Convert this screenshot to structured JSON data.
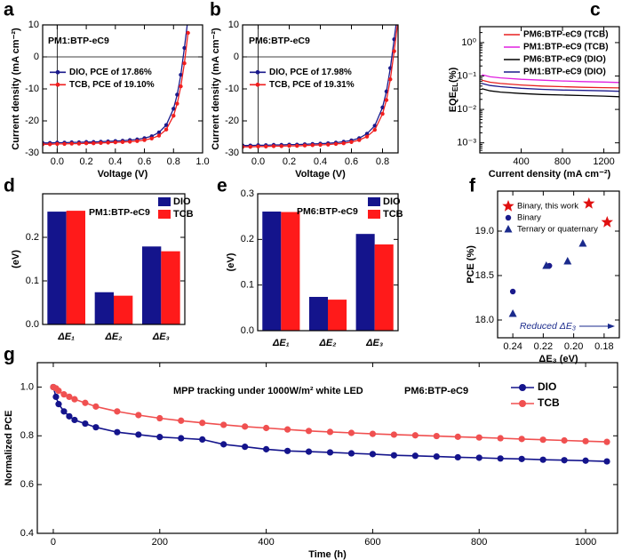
{
  "chart_data": [
    {
      "type": "line",
      "panel_label": "a",
      "annotation": "PM1:BTP-eC9",
      "xlabel": "Voltage (V)",
      "ylabel": "Current density (mA cm⁻²)",
      "xlim": [
        -0.1,
        1.0
      ],
      "ylim": [
        -30,
        10
      ],
      "xticks": [
        {
          "value": 0,
          "label": "0.0"
        },
        0.2,
        0.4,
        0.6,
        0.8,
        {
          "value": 1,
          "label": "1.0"
        }
      ],
      "yticks": [
        -30,
        -20,
        -10,
        0,
        10
      ],
      "markers": true,
      "legend": "center left",
      "x": [
        -0.1,
        -0.05,
        0,
        0.05,
        0.1,
        0.15,
        0.2,
        0.25,
        0.3,
        0.35,
        0.4,
        0.45,
        0.5,
        0.55,
        0.6,
        0.65,
        0.7,
        0.75,
        0.8,
        0.825,
        0.85,
        0.875,
        0.9
      ],
      "series": [
        {
          "name": "DIO, PCE of 17.86%",
          "color": "#1a1a8c",
          "values": [
            -26.9,
            -26.9,
            -26.8,
            -26.8,
            -26.7,
            -26.7,
            -26.6,
            -26.6,
            -26.5,
            -26.4,
            -26.3,
            -26.2,
            -26.0,
            -25.8,
            -25.4,
            -24.8,
            -23.6,
            -21.3,
            -16.2,
            -11.8,
            -5.6,
            2.8,
            12.0
          ]
        },
        {
          "name": "TCB, PCE of 19.10%",
          "color": "#f01e1e",
          "values": [
            -27.3,
            -27.3,
            -27.2,
            -27.2,
            -27.1,
            -27.1,
            -27.0,
            -27.0,
            -26.9,
            -26.8,
            -26.7,
            -26.6,
            -26.5,
            -26.3,
            -26.0,
            -25.5,
            -24.6,
            -22.7,
            -18.4,
            -14.6,
            -9.2,
            -2.0,
            7.5
          ]
        }
      ]
    },
    {
      "type": "line",
      "panel_label": "b",
      "annotation": "PM6:BTP-eC9",
      "xlabel": "Voltage (V)",
      "ylabel": "Current density (mA cm⁻²)",
      "xlim": [
        -0.1,
        0.9
      ],
      "ylim": [
        -30,
        10
      ],
      "xticks": [
        {
          "value": 0,
          "label": "0.0"
        },
        0.2,
        0.4,
        0.6,
        0.8
      ],
      "yticks": [
        -30,
        -20,
        -10,
        0,
        10
      ],
      "markers": true,
      "legend": "center left",
      "x": [
        -0.1,
        -0.05,
        0,
        0.05,
        0.1,
        0.15,
        0.2,
        0.25,
        0.3,
        0.35,
        0.4,
        0.45,
        0.5,
        0.55,
        0.6,
        0.65,
        0.7,
        0.75,
        0.8,
        0.825,
        0.85,
        0.875,
        0.9
      ],
      "series": [
        {
          "name": "DIO, PCE of 17.98%",
          "color": "#1a1a8c",
          "values": [
            -27.7,
            -27.7,
            -27.6,
            -27.6,
            -27.5,
            -27.5,
            -27.4,
            -27.4,
            -27.3,
            -27.2,
            -27.1,
            -27.0,
            -26.8,
            -26.5,
            -26.1,
            -25.4,
            -24.0,
            -21.5,
            -15.8,
            -10.8,
            -3.5,
            5.5,
            15.0
          ]
        },
        {
          "name": "TCB, PCE of 19.31%",
          "color": "#f01e1e",
          "values": [
            -28.1,
            -28.1,
            -28.0,
            -28.0,
            -27.9,
            -27.9,
            -27.8,
            -27.8,
            -27.7,
            -27.6,
            -27.5,
            -27.4,
            -27.2,
            -27.0,
            -26.6,
            -26.0,
            -24.9,
            -22.8,
            -17.8,
            -13.5,
            -7.0,
            1.8,
            11.5
          ]
        }
      ]
    },
    {
      "type": "line",
      "panel_label": "c",
      "xlabel": "Current density (mA cm⁻²)",
      "ylabel": {
        "main": "EQE",
        "sub": "EL",
        "unit": "(%)"
      },
      "xlim": [
        0,
        1350
      ],
      "ylim": [
        0.0005,
        3
      ],
      "ylog": true,
      "xticks": [
        400,
        800,
        1200
      ],
      "yticks": [
        {
          "value": 0.001,
          "label": "10⁻³"
        },
        {
          "value": 0.01,
          "label": "10⁻²"
        },
        {
          "value": 0.1,
          "label": "10⁻¹"
        },
        {
          "value": 1,
          "label": "10⁰"
        }
      ],
      "markers": false,
      "legend": "upper right",
      "x": [
        20,
        100,
        200,
        400,
        600,
        800,
        1000,
        1200,
        1350
      ],
      "series": [
        {
          "name": "PM6:BTP-eC9 (TCB)",
          "color": "#e82020",
          "values": [
            0.075,
            0.065,
            0.06,
            0.054,
            0.05,
            0.048,
            0.046,
            0.045,
            0.044
          ]
        },
        {
          "name": "PM1:BTP-eC9 (TCB)",
          "color": "#e020e0",
          "values": [
            0.11,
            0.095,
            0.088,
            0.08,
            0.075,
            0.071,
            0.068,
            0.066,
            0.064
          ]
        },
        {
          "name": "PM6:BTP-eC9 (DIO)",
          "color": "#000000",
          "values": [
            0.042,
            0.036,
            0.033,
            0.03,
            0.028,
            0.027,
            0.026,
            0.025,
            0.024
          ]
        },
        {
          "name": "PM1:BTP-eC9 (DIO)",
          "color": "#1a1a8c",
          "values": [
            0.06,
            0.052,
            0.048,
            0.043,
            0.04,
            0.038,
            0.037,
            0.036,
            0.035
          ]
        }
      ]
    },
    {
      "type": "bar",
      "panel_label": "d",
      "annotation": "PM1:BTP-eC9",
      "ylabel": "(eV)",
      "ylim": [
        0,
        0.3
      ],
      "yticks": [
        {
          "value": 0,
          "label": "0.0"
        },
        0.1,
        0.2
      ],
      "legend": "upper right",
      "categories": [
        "ΔE₁",
        "ΔE₂",
        "ΔE₃"
      ],
      "series": [
        {
          "name": "DIO",
          "color": "#14148c",
          "values": [
            0.259,
            0.074,
            0.179
          ]
        },
        {
          "name": "TCB",
          "color": "#ff1a1a",
          "values": [
            0.261,
            0.066,
            0.168
          ]
        }
      ]
    },
    {
      "type": "bar",
      "panel_label": "e",
      "annotation": "PM6:BTP-eC9",
      "ylabel": "(eV)",
      "ylim": [
        0,
        0.3
      ],
      "yticks": [
        {
          "value": 0,
          "label": "0.0"
        },
        0.1,
        0.2,
        0.3
      ],
      "legend": "upper right",
      "categories": [
        "ΔE₁",
        "ΔE₂",
        "ΔE₃"
      ],
      "series": [
        {
          "name": "DIO",
          "color": "#14148c",
          "values": [
            0.261,
            0.074,
            0.212
          ]
        },
        {
          "name": "TCB",
          "color": "#ff1a1a",
          "values": [
            0.26,
            0.068,
            0.189
          ]
        }
      ]
    },
    {
      "type": "scatter",
      "panel_label": "f",
      "xlabel": "ΔE₃ (eV)",
      "ylabel": "PCE (%)",
      "xlim": [
        0.25,
        0.17
      ],
      "ylim": [
        17.8,
        19.45
      ],
      "xticks": [
        0.24,
        {
          "value": 0.22,
          "label": "0.22"
        },
        {
          "value": 0.2,
          "label": "0.20"
        },
        0.18
      ],
      "yticks": [
        {
          "value": 18,
          "label": "18.0"
        },
        18.5,
        {
          "value": 19,
          "label": "19.0"
        }
      ],
      "legend": "upper right",
      "annotation": "Reduced ΔE₃",
      "series": [
        {
          "name": "Binary, this work",
          "color": "#e01010",
          "marker": "star",
          "x": [
            0.19,
            0.178
          ],
          "values": [
            19.31,
            19.1
          ]
        },
        {
          "name": "Binary",
          "color": "#1a1a8c",
          "marker": "circle",
          "x": [
            0.24,
            0.216
          ],
          "values": [
            18.32,
            18.61
          ]
        },
        {
          "name": "Ternary or quaternary",
          "color": "#1a2a8c",
          "marker": "triangle",
          "x": [
            0.24,
            0.218,
            0.204,
            0.194
          ],
          "values": [
            18.07,
            18.61,
            18.66,
            18.86
          ]
        }
      ]
    },
    {
      "type": "line",
      "panel_label": "g",
      "xlabel": "Time (h)",
      "ylabel": "Normalized PCE",
      "annotations": [
        "MPP tracking under 1000W/m² white LED",
        "PM6:BTP-eC9"
      ],
      "xlim": [
        -30,
        1060
      ],
      "ylim": [
        0.4,
        1.1
      ],
      "xticks": [
        0,
        200,
        400,
        600,
        800,
        1000
      ],
      "yticks": [
        0.4,
        0.6,
        0.8,
        {
          "value": 1,
          "label": "1.0"
        }
      ],
      "markers": true,
      "legend": "upper right",
      "x": [
        0,
        5,
        10,
        20,
        30,
        40,
        60,
        80,
        120,
        160,
        200,
        240,
        280,
        320,
        360,
        400,
        440,
        480,
        520,
        560,
        600,
        640,
        680,
        720,
        760,
        800,
        840,
        880,
        920,
        960,
        1000,
        1040
      ],
      "series": [
        {
          "name": "DIO",
          "color": "#14148c",
          "values": [
            1.0,
            0.96,
            0.93,
            0.9,
            0.88,
            0.865,
            0.85,
            0.835,
            0.815,
            0.805,
            0.795,
            0.79,
            0.785,
            0.765,
            0.755,
            0.745,
            0.738,
            0.735,
            0.732,
            0.728,
            0.725,
            0.72,
            0.718,
            0.715,
            0.712,
            0.71,
            0.707,
            0.705,
            0.702,
            0.7,
            0.698,
            0.695
          ]
        },
        {
          "name": "TCB",
          "color": "#f05050",
          "values": [
            1.0,
            0.995,
            0.985,
            0.97,
            0.96,
            0.95,
            0.935,
            0.92,
            0.9,
            0.885,
            0.872,
            0.862,
            0.853,
            0.845,
            0.838,
            0.832,
            0.826,
            0.82,
            0.816,
            0.812,
            0.808,
            0.805,
            0.802,
            0.799,
            0.796,
            0.793,
            0.79,
            0.787,
            0.784,
            0.781,
            0.778,
            0.775
          ]
        }
      ]
    }
  ]
}
